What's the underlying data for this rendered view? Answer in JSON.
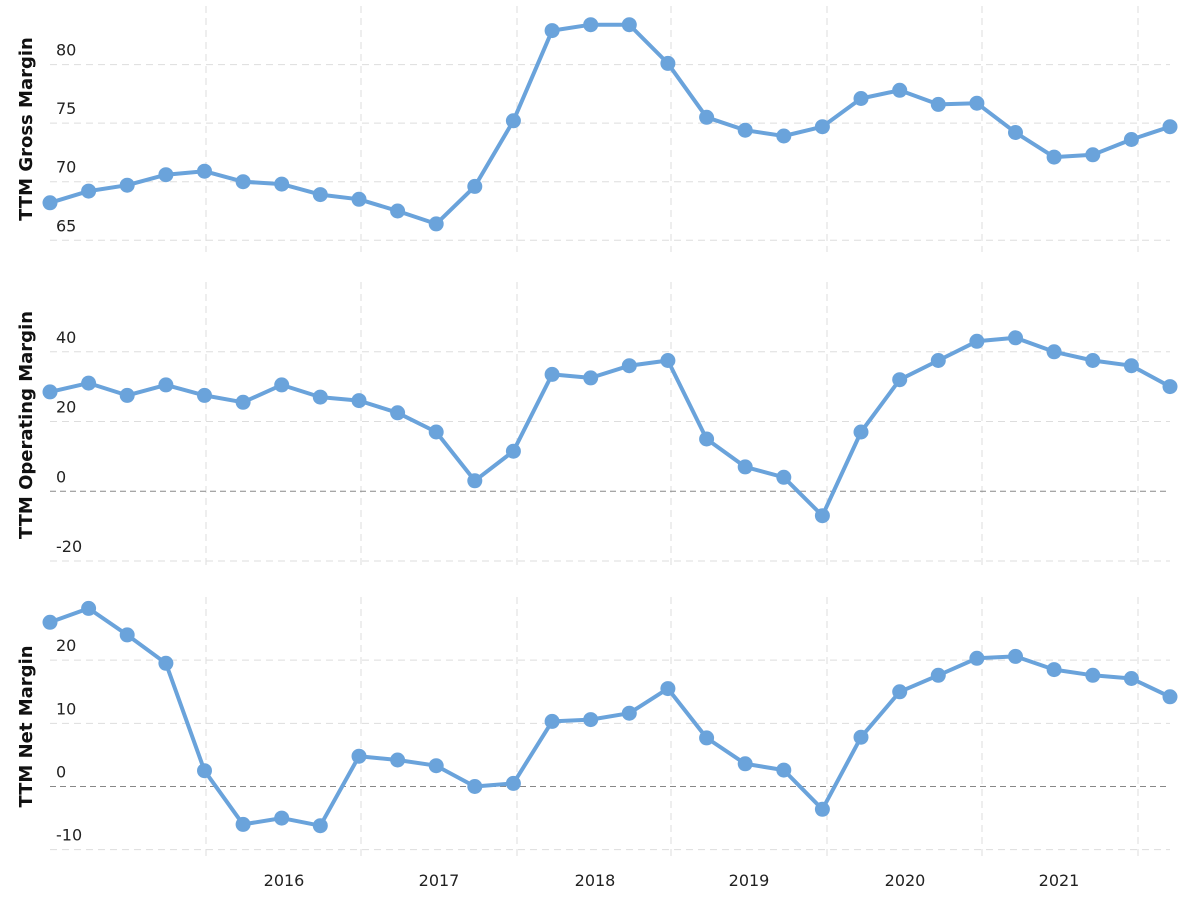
{
  "colors": {
    "series": "#6aa3db",
    "grid": "#dddddd",
    "zero": "#888888"
  },
  "x_tick_labels": [
    "2016",
    "2017",
    "2018",
    "2019",
    "2020",
    "2021"
  ],
  "chart_data": [
    {
      "type": "line",
      "ylabel": "TTM Gross Margin",
      "ylim": [
        64,
        85
      ],
      "y_ticks": [
        65,
        70,
        75,
        80
      ],
      "values": [
        68.2,
        69.2,
        69.7,
        70.6,
        70.9,
        70.0,
        69.8,
        68.9,
        68.5,
        67.5,
        66.4,
        69.6,
        75.2,
        82.9,
        83.4,
        83.4,
        80.1,
        75.5,
        74.4,
        73.9,
        74.7,
        77.1,
        77.8,
        76.6,
        76.7,
        74.2,
        72.1,
        72.3,
        73.6,
        74.7
      ],
      "grid": true
    },
    {
      "type": "line",
      "ylabel": "TTM Operating Margin",
      "ylim": [
        -22,
        60
      ],
      "y_ticks": [
        -20,
        0,
        20,
        40
      ],
      "values": [
        28.5,
        31.0,
        27.5,
        30.5,
        27.5,
        25.5,
        30.5,
        27.0,
        26.0,
        22.5,
        17.0,
        3.0,
        11.5,
        33.5,
        32.5,
        36.0,
        37.5,
        15.0,
        7.0,
        4.0,
        -7.0,
        17.0,
        32.0,
        37.5,
        43.0,
        44.0,
        40.0,
        37.5,
        36.0,
        30.0
      ],
      "grid": true
    },
    {
      "type": "line",
      "ylabel": "TTM Net Margin",
      "ylim": [
        -11,
        30
      ],
      "y_ticks": [
        -10,
        0,
        10,
        20
      ],
      "values": [
        26.0,
        28.2,
        24.0,
        19.5,
        2.5,
        -6.0,
        -5.0,
        -6.2,
        4.8,
        4.2,
        3.3,
        0.0,
        0.5,
        10.3,
        10.6,
        11.6,
        15.5,
        7.7,
        3.6,
        2.6,
        -3.6,
        7.8,
        15.0,
        17.6,
        20.3,
        20.6,
        18.5,
        17.6,
        17.1,
        14.2
      ],
      "grid": true
    }
  ]
}
